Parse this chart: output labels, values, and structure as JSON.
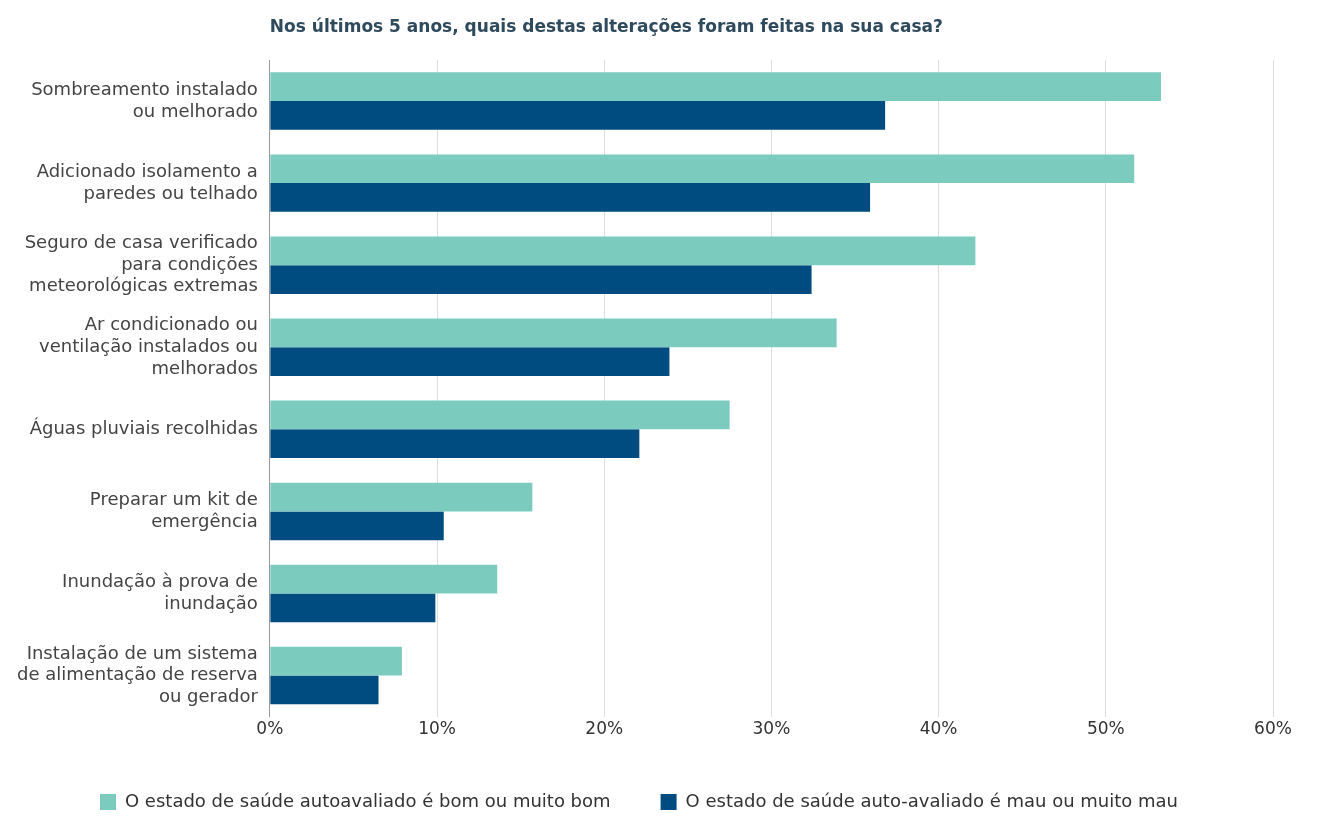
{
  "chart_data": {
    "type": "bar",
    "orientation": "horizontal",
    "title": "Nos últimos 5 anos, quais destas alterações foram feitas na sua casa?",
    "categories": [
      "Sombreamento instalado ou melhorado",
      "Adicionado isolamento a paredes ou telhado",
      "Seguro de casa verificado para condições meteorológicas extremas",
      "Ar condicionado ou ventilação instalados ou melhorados",
      "Águas pluviais recolhidas",
      "Preparar um kit de emergência",
      "Inundação à prova de inundação",
      "Instalação de um sistema de alimentação de reserva ou gerador"
    ],
    "series": [
      {
        "name": "O estado de saúde autoavaliado é bom ou muito bom",
        "color": "#7ccbbf",
        "values": [
          53.3,
          51.7,
          42.2,
          33.9,
          27.5,
          15.7,
          13.6,
          7.9
        ]
      },
      {
        "name": "O estado de saúde auto-avaliado é mau ou muito mau",
        "color": "#004c80",
        "values": [
          36.8,
          35.9,
          32.4,
          23.9,
          22.1,
          10.4,
          9.9,
          6.5
        ]
      }
    ],
    "xlim": [
      0,
      60
    ],
    "xticks": [
      {
        "value": 0,
        "label": "0%"
      },
      {
        "value": 10,
        "label": "10%"
      },
      {
        "value": 20,
        "label": "20%"
      },
      {
        "value": 30,
        "label": "30%"
      },
      {
        "value": 40,
        "label": "40%"
      },
      {
        "value": 50,
        "label": "50%"
      },
      {
        "value": 60,
        "label": "60%"
      }
    ],
    "grid": "x",
    "legend": "bottom"
  }
}
